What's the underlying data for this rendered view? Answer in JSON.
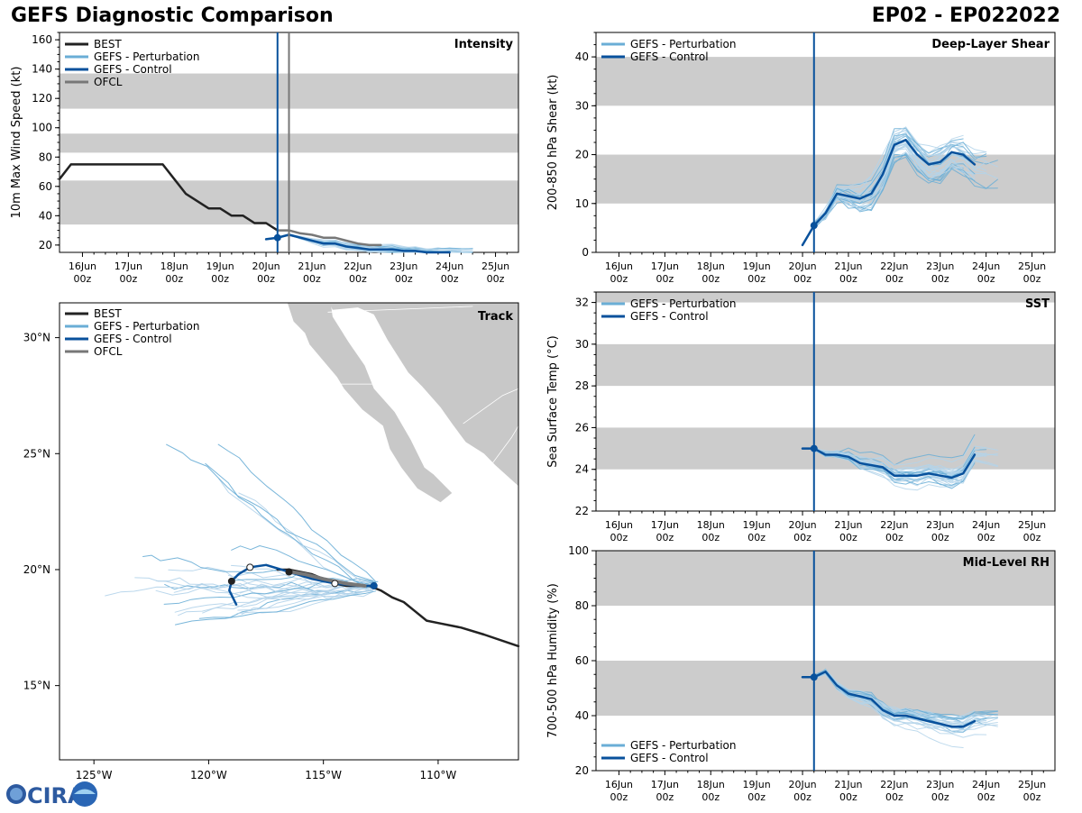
{
  "header": {
    "title": "GEFS Diagnostic Comparison",
    "storm": "EP02 - EP022022"
  },
  "logo": {
    "text": "CIRA"
  },
  "colors": {
    "best": "#222222",
    "perturbation": "#6aaed6",
    "perturbation_light": "#b3d3ea",
    "control": "#08519c",
    "ofcl": "#777777",
    "band": "#cccccc",
    "land": "#c8c8c8"
  },
  "time_axis": {
    "ticks": [
      {
        "day": 16,
        "label1": "16Jun",
        "label2": "00z"
      },
      {
        "day": 17,
        "label1": "17Jun",
        "label2": "00z"
      },
      {
        "day": 18,
        "label1": "18Jun",
        "label2": "00z"
      },
      {
        "day": 19,
        "label1": "19Jun",
        "label2": "00z"
      },
      {
        "day": 20,
        "label1": "20Jun",
        "label2": "00z"
      },
      {
        "day": 21,
        "label1": "21Jun",
        "label2": "00z"
      },
      {
        "day": 22,
        "label1": "22Jun",
        "label2": "00z"
      },
      {
        "day": 23,
        "label1": "23Jun",
        "label2": "00z"
      },
      {
        "day": 24,
        "label1": "24Jun",
        "label2": "00z"
      },
      {
        "day": 25,
        "label1": "25Jun",
        "label2": "00z"
      }
    ],
    "init_day": 20.25,
    "ofcl_day": 20.5
  },
  "chart_data": [
    {
      "id": "intensity",
      "type": "line",
      "title": "Intensity",
      "ylabel": "10m Max Wind Speed (kt)",
      "xlim": [
        15.5,
        25.5
      ],
      "ylim": [
        15,
        165
      ],
      "yticks": [
        20,
        40,
        60,
        80,
        100,
        120,
        140,
        160
      ],
      "bands": [
        [
          34,
          64
        ],
        [
          83,
          96
        ],
        [
          113,
          137
        ]
      ],
      "legend": [
        "BEST",
        "GEFS - Perturbation",
        "GEFS - Control",
        "OFCL"
      ],
      "series": [
        {
          "name": "BEST",
          "x": [
            15.5,
            15.75,
            16,
            16.25,
            16.5,
            16.75,
            17,
            17.25,
            17.5,
            17.75,
            18,
            18.25,
            18.5,
            18.75,
            19,
            19.25,
            19.5,
            19.75,
            20,
            20.25
          ],
          "y": [
            65,
            75,
            75,
            75,
            75,
            75,
            75,
            75,
            75,
            75,
            65,
            55,
            50,
            45,
            45,
            40,
            40,
            35,
            35,
            30
          ]
        },
        {
          "name": "GEFS - Control",
          "x": [
            20,
            20.25,
            20.5,
            20.75,
            21,
            21.25,
            21.5,
            21.75,
            22,
            22.25,
            22.5,
            22.75,
            23,
            23.25,
            23.5,
            23.75,
            24
          ],
          "y": [
            24,
            25,
            27,
            25,
            23,
            21,
            21,
            19,
            18,
            17,
            17,
            17,
            16,
            16,
            15,
            15,
            15
          ]
        },
        {
          "name": "OFCL",
          "x": [
            20.25,
            20.5,
            20.75,
            21,
            21.25,
            21.5,
            21.75,
            22,
            22.25,
            22.5
          ],
          "y": [
            30,
            30,
            28,
            27,
            25,
            25,
            23,
            21,
            20,
            20
          ]
        }
      ]
    },
    {
      "id": "shear",
      "type": "line",
      "title": "Deep-Layer Shear",
      "ylabel": "200-850 hPa Shear (kt)",
      "xlim": [
        15.5,
        25.5
      ],
      "ylim": [
        0,
        45
      ],
      "yticks": [
        0,
        10,
        20,
        30,
        40
      ],
      "bands": [
        [
          10,
          20
        ],
        [
          30,
          40
        ]
      ],
      "legend": [
        "GEFS - Perturbation",
        "GEFS - Control"
      ],
      "series": [
        {
          "name": "GEFS - Control",
          "x": [
            20,
            20.25,
            20.5,
            20.75,
            21,
            21.25,
            21.5,
            21.75,
            22,
            22.25,
            22.5,
            22.75,
            23,
            23.25,
            23.5,
            23.75
          ],
          "y": [
            1.5,
            5.5,
            8,
            12,
            11.5,
            11,
            12,
            16,
            22,
            23,
            20,
            18,
            18.5,
            20.5,
            20,
            18
          ]
        }
      ]
    },
    {
      "id": "sst",
      "type": "line",
      "title": "SST",
      "ylabel": "Sea Surface Temp (°C)",
      "xlim": [
        15.5,
        25.5
      ],
      "ylim": [
        22,
        32.5
      ],
      "yticks": [
        22,
        24,
        26,
        28,
        30,
        32
      ],
      "bands": [
        [
          24,
          26
        ],
        [
          28,
          30
        ],
        [
          32,
          32.5
        ]
      ],
      "legend": [
        "GEFS - Perturbation",
        "GEFS - Control"
      ],
      "series": [
        {
          "name": "GEFS - Control",
          "x": [
            20,
            20.25,
            20.5,
            20.75,
            21,
            21.25,
            21.5,
            21.75,
            22,
            22.25,
            22.5,
            22.75,
            23,
            23.25,
            23.5,
            23.75
          ],
          "y": [
            25,
            25,
            24.7,
            24.7,
            24.6,
            24.3,
            24.2,
            24.1,
            23.7,
            23.7,
            23.7,
            23.8,
            23.7,
            23.6,
            23.8,
            24.7
          ]
        }
      ]
    },
    {
      "id": "rh",
      "type": "line",
      "title": "Mid-Level RH",
      "ylabel": "700-500 hPa Humidity (%)",
      "xlim": [
        15.5,
        25.5
      ],
      "ylim": [
        20,
        100
      ],
      "yticks": [
        20,
        40,
        60,
        80,
        100
      ],
      "bands": [
        [
          40,
          60
        ],
        [
          80,
          100
        ]
      ],
      "legend": [
        "GEFS - Perturbation",
        "GEFS - Control"
      ],
      "series": [
        {
          "name": "GEFS - Control",
          "x": [
            20,
            20.25,
            20.5,
            20.75,
            21,
            21.25,
            21.5,
            21.75,
            22,
            22.25,
            22.5,
            22.75,
            23,
            23.25,
            23.5,
            23.75
          ],
          "y": [
            54,
            54,
            56,
            51,
            48,
            47,
            46,
            42,
            40,
            40,
            39,
            38,
            37,
            36,
            36,
            38
          ]
        }
      ]
    },
    {
      "id": "track",
      "type": "line",
      "title": "Track",
      "xlim": [
        -126.5,
        -106.5
      ],
      "ylim": [
        11.8,
        31.5
      ],
      "xticks": [
        {
          "v": -125,
          "label": "125°W"
        },
        {
          "v": -120,
          "label": "120°W"
        },
        {
          "v": -115,
          "label": "115°W"
        },
        {
          "v": -110,
          "label": "110°W"
        }
      ],
      "yticks": [
        {
          "v": 15,
          "label": "15°N"
        },
        {
          "v": 20,
          "label": "20°N"
        },
        {
          "v": 25,
          "label": "25°N"
        },
        {
          "v": 30,
          "label": "30°N"
        }
      ],
      "legend": [
        "BEST",
        "GEFS - Perturbation",
        "GEFS - Control",
        "OFCL"
      ],
      "series": [
        {
          "name": "BEST",
          "lon": [
            -106.5,
            -108,
            -109,
            -110,
            -110.5,
            -111,
            -111.5,
            -112,
            -112.5,
            -113,
            -113.5,
            -114,
            -114.5,
            -115,
            -115.5,
            -116,
            -116.5,
            -117
          ],
          "lat": [
            16.7,
            17.2,
            17.5,
            17.7,
            17.8,
            18.2,
            18.6,
            18.8,
            19.1,
            19.3,
            19.3,
            19.3,
            19.4,
            19.6,
            19.8,
            19.9,
            20,
            20
          ]
        },
        {
          "name": "GEFS - Control",
          "lon": [
            -112.8,
            -113.5,
            -114.5,
            -115.5,
            -116.5,
            -117.5,
            -118.2,
            -118.7,
            -119,
            -119.1,
            -118.8
          ],
          "lat": [
            19.3,
            19.3,
            19.4,
            19.6,
            19.9,
            20.2,
            20.1,
            19.8,
            19.5,
            19.1,
            18.5
          ]
        },
        {
          "name": "OFCL",
          "lon": [
            -113.2,
            -114,
            -115,
            -115.8,
            -116.4
          ],
          "lat": [
            19.3,
            19.4,
            19.6,
            19.8,
            19.9
          ]
        }
      ]
    }
  ]
}
